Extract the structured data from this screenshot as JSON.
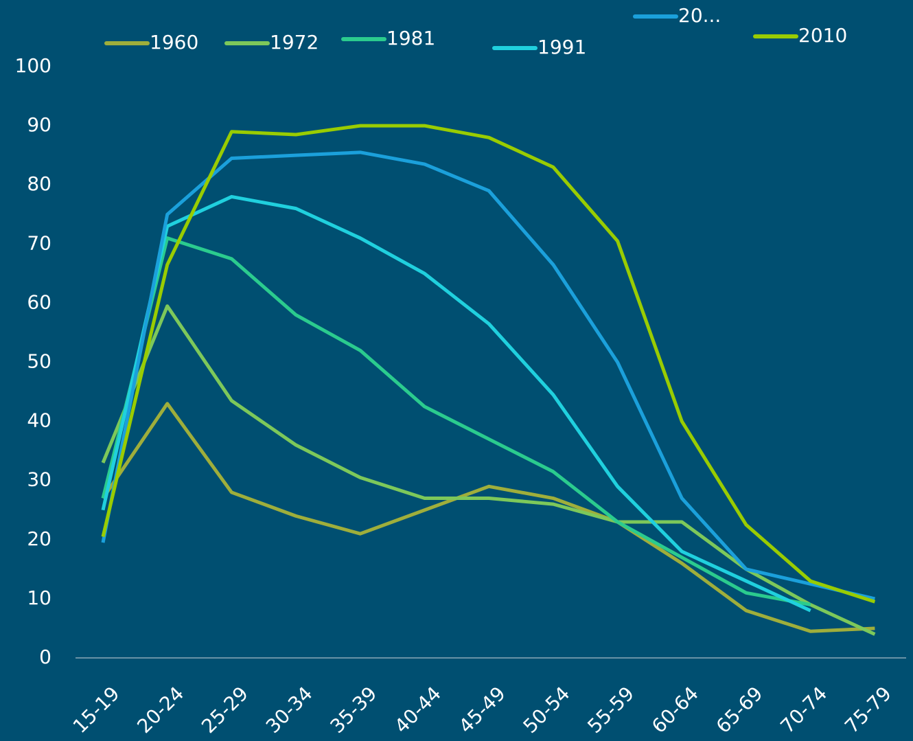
{
  "chart_data": {
    "type": "line",
    "categories": [
      "15-19",
      "20-24",
      "25-29",
      "30-34",
      "35-39",
      "40-44",
      "45-49",
      "50-54",
      "55-59",
      "60-64",
      "65-69",
      "70-74",
      "75-79"
    ],
    "series": [
      {
        "name": "1960",
        "color": "#9fae3b",
        "values": [
          27,
          43,
          28,
          24,
          21,
          25,
          29,
          27,
          23,
          16,
          8,
          4.5,
          5
        ]
      },
      {
        "name": "1972",
        "color": "#7dc85a",
        "values": [
          33,
          59.5,
          43.5,
          36,
          30.5,
          27,
          27,
          26,
          23,
          23,
          15,
          9,
          4
        ]
      },
      {
        "name": "1981",
        "color": "#2bcb8e",
        "values": [
          27,
          71,
          67.5,
          58,
          52,
          42.5,
          37,
          31.5,
          23,
          17,
          11,
          9,
          null
        ]
      },
      {
        "name": "1991",
        "color": "#20d0de",
        "values": [
          25,
          73,
          78,
          76,
          71,
          65,
          56.5,
          44.5,
          29,
          18,
          13,
          8,
          null
        ]
      },
      {
        "name": "20...",
        "color": "#1ba0db",
        "values": [
          19.5,
          75,
          84.5,
          85,
          85.5,
          83.5,
          79,
          66.5,
          50,
          27,
          15,
          12.5,
          10
        ]
      },
      {
        "name": "2010",
        "color": "#99cc00",
        "values": [
          20.5,
          66.5,
          89,
          88.5,
          90,
          90,
          88,
          83,
          70.5,
          40,
          22.5,
          13,
          9.5
        ]
      }
    ],
    "ylim": [
      0,
      100
    ],
    "yticks": [
      0,
      10,
      20,
      30,
      40,
      50,
      60,
      70,
      80,
      90,
      100
    ],
    "legend": "top"
  }
}
